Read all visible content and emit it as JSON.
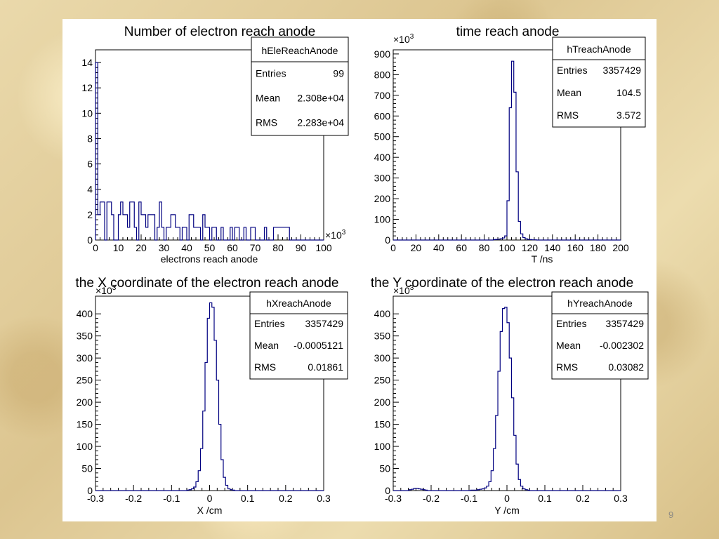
{
  "slide": {
    "page_number": "9"
  },
  "chart_data": [
    {
      "type": "histogram",
      "title": "Number of electron reach anode",
      "xlabel": "electrons reach anode",
      "ylabel": "",
      "xlim": [
        0,
        100
      ],
      "ylim": [
        0,
        15
      ],
      "x_multiplier": "×10³",
      "y_multiplier": "",
      "xticks": [
        0,
        10,
        20,
        30,
        40,
        50,
        60,
        70,
        80,
        90,
        100
      ],
      "xtick_labels": [
        "0",
        "10",
        "20",
        "30",
        "40",
        "50",
        "60",
        "70",
        "80",
        "90",
        "100"
      ],
      "yticks": [
        0,
        2,
        4,
        6,
        8,
        10,
        12,
        14
      ],
      "ytick_labels": [
        "0",
        "2",
        "4",
        "6",
        "8",
        "10",
        "12",
        "14"
      ],
      "bin_width": 1,
      "x": [
        0,
        1,
        2,
        3,
        4,
        5,
        6,
        7,
        8,
        9,
        10,
        11,
        12,
        13,
        14,
        15,
        16,
        17,
        18,
        19,
        20,
        21,
        22,
        23,
        24,
        25,
        26,
        27,
        28,
        29,
        30,
        31,
        32,
        33,
        34,
        35,
        36,
        37,
        38,
        39,
        40,
        41,
        42,
        43,
        44,
        45,
        46,
        47,
        48,
        49,
        50,
        51,
        52,
        53,
        54,
        55,
        56,
        57,
        58,
        59,
        60,
        61,
        62,
        63,
        64,
        65,
        66,
        67,
        68,
        69,
        70,
        71,
        72,
        73,
        74,
        75,
        76,
        77,
        78,
        79,
        80,
        81,
        82,
        83,
        84,
        85,
        86,
        87,
        88,
        89,
        90,
        91,
        92,
        93,
        94,
        95,
        96,
        97,
        98,
        99
      ],
      "values": [
        14,
        2,
        3,
        3,
        0,
        3,
        3,
        2,
        0,
        0,
        2,
        3,
        2,
        2,
        1,
        3,
        3,
        1,
        0,
        3,
        2,
        2,
        1,
        2,
        2,
        2,
        0,
        1,
        3,
        1,
        0,
        1,
        1,
        2,
        2,
        1,
        1,
        0,
        1,
        1,
        0,
        2,
        2,
        1,
        1,
        1,
        0,
        2,
        1,
        1,
        0,
        1,
        1,
        0,
        0,
        1,
        0,
        0,
        0,
        1,
        0,
        1,
        1,
        0,
        0,
        1,
        0,
        0,
        1,
        1,
        0,
        0,
        0,
        0,
        1,
        0,
        0,
        0,
        1,
        1,
        1,
        1,
        1,
        1,
        1,
        0,
        0,
        0,
        0,
        0,
        0,
        0,
        0,
        0,
        0,
        0,
        0,
        0,
        0,
        0
      ],
      "stats": {
        "name": "hEleReachAnode",
        "entries": "99",
        "mean": "2.308e+04",
        "rms": "2.283e+04"
      },
      "color": "#000080"
    },
    {
      "type": "histogram",
      "title": "time reach anode",
      "xlabel": "T /ns",
      "ylabel": "",
      "xlim": [
        0,
        200
      ],
      "ylim": [
        0,
        920
      ],
      "x_multiplier": "",
      "y_multiplier": "×10³",
      "xticks": [
        0,
        20,
        40,
        60,
        80,
        100,
        120,
        140,
        160,
        180,
        200
      ],
      "xtick_labels": [
        "0",
        "20",
        "40",
        "60",
        "80",
        "100",
        "120",
        "140",
        "160",
        "180",
        "200"
      ],
      "yticks": [
        0,
        100,
        200,
        300,
        400,
        500,
        600,
        700,
        800,
        900
      ],
      "ytick_labels": [
        "0",
        "100",
        "200",
        "300",
        "400",
        "500",
        "600",
        "700",
        "800",
        "900"
      ],
      "bin_width": 2,
      "x": [
        0,
        2,
        4,
        6,
        8,
        10,
        12,
        14,
        16,
        18,
        20,
        22,
        24,
        26,
        28,
        30,
        32,
        34,
        36,
        38,
        40,
        42,
        44,
        46,
        48,
        50,
        52,
        54,
        56,
        58,
        60,
        62,
        64,
        66,
        68,
        70,
        72,
        74,
        76,
        78,
        80,
        82,
        84,
        86,
        88,
        90,
        92,
        94,
        96,
        98,
        100,
        102,
        104,
        106,
        108,
        110,
        112,
        114,
        116,
        118,
        120,
        122,
        124,
        126,
        128,
        130,
        132,
        134,
        136,
        138,
        140,
        142,
        144,
        146,
        148,
        150,
        152,
        154,
        156,
        158,
        160,
        162,
        164,
        166,
        168,
        170,
        172,
        174,
        176,
        178,
        180,
        182,
        184,
        186,
        188,
        190,
        192,
        194,
        196,
        198
      ],
      "values": [
        0,
        0,
        0,
        0,
        0,
        0,
        0,
        0,
        0,
        0,
        0,
        0,
        0,
        0,
        0,
        0,
        0,
        0,
        0,
        0,
        0,
        0,
        0,
        0,
        0,
        0,
        0,
        0,
        0,
        0,
        0,
        0,
        0,
        0,
        0,
        0,
        0,
        0,
        0,
        0,
        0,
        0,
        0,
        0,
        2,
        3,
        4,
        6,
        10,
        20,
        190,
        640,
        865,
        715,
        330,
        90,
        30,
        12,
        6,
        3,
        2,
        1,
        1,
        0,
        0,
        0,
        0,
        0,
        0,
        0,
        0,
        0,
        0,
        0,
        0,
        0,
        0,
        0,
        0,
        0,
        0,
        0,
        0,
        0,
        0,
        0,
        0,
        0,
        0,
        0,
        0,
        0,
        0,
        0,
        0,
        0,
        0,
        0,
        0,
        0
      ],
      "stats": {
        "name": "hTreachAnode",
        "entries": "3357429",
        "mean": "104.5",
        "rms": "3.572"
      },
      "color": "#000080"
    },
    {
      "type": "histogram",
      "title": "the X coordinate of the electron reach anode",
      "xlabel": "X /cm",
      "ylabel": "",
      "xlim": [
        -0.3,
        0.3
      ],
      "ylim": [
        0,
        440
      ],
      "x_multiplier": "",
      "y_multiplier": "×10³",
      "xticks": [
        -0.3,
        -0.2,
        -0.1,
        0,
        0.1,
        0.2,
        0.3
      ],
      "xtick_labels": [
        "-0.3",
        "-0.2",
        "-0.1",
        "0",
        "0.1",
        "0.2",
        "0.3"
      ],
      "yticks": [
        0,
        50,
        100,
        150,
        200,
        250,
        300,
        350,
        400
      ],
      "ytick_labels": [
        "0",
        "50",
        "100",
        "150",
        "200",
        "250",
        "300",
        "350",
        "400"
      ],
      "bin_width": 0.006,
      "x": [
        -0.3,
        -0.294,
        -0.288,
        -0.282,
        -0.276,
        -0.27,
        -0.264,
        -0.258,
        -0.252,
        -0.246,
        -0.24,
        -0.234,
        -0.228,
        -0.222,
        -0.216,
        -0.21,
        -0.204,
        -0.198,
        -0.192,
        -0.186,
        -0.18,
        -0.174,
        -0.168,
        -0.162,
        -0.156,
        -0.15,
        -0.144,
        -0.138,
        -0.132,
        -0.126,
        -0.12,
        -0.114,
        -0.108,
        -0.102,
        -0.096,
        -0.09,
        -0.084,
        -0.078,
        -0.072,
        -0.066,
        -0.06,
        -0.054,
        -0.048,
        -0.042,
        -0.036,
        -0.03,
        -0.024,
        -0.018,
        -0.012,
        -0.006,
        0,
        0.006,
        0.012,
        0.018,
        0.024,
        0.03,
        0.036,
        0.042,
        0.048,
        0.054,
        0.06,
        0.066,
        0.072,
        0.078,
        0.084,
        0.09,
        0.096,
        0.102,
        0.108,
        0.114,
        0.12,
        0.126,
        0.132,
        0.138,
        0.144,
        0.15,
        0.156,
        0.162,
        0.168,
        0.174,
        0.18,
        0.186,
        0.192,
        0.198,
        0.204,
        0.21,
        0.216,
        0.222,
        0.228,
        0.234,
        0.24,
        0.246,
        0.252,
        0.258,
        0.264,
        0.27,
        0.276,
        0.282,
        0.288,
        0.294
      ],
      "values": [
        0,
        0,
        0,
        0,
        0,
        0,
        0,
        0,
        0,
        0,
        0,
        0,
        0,
        0,
        0,
        0,
        0,
        0,
        0,
        0,
        0,
        0,
        0,
        0,
        0,
        0,
        0,
        0,
        0,
        0,
        0,
        0,
        0,
        0,
        0,
        0,
        0,
        0,
        0,
        0,
        1,
        2,
        4,
        8,
        20,
        45,
        95,
        180,
        290,
        390,
        425,
        415,
        340,
        250,
        150,
        70,
        30,
        12,
        4,
        2,
        1,
        0,
        0,
        0,
        0,
        0,
        0,
        0,
        0,
        0,
        0,
        0,
        0,
        0,
        0,
        0,
        0,
        0,
        0,
        0,
        0,
        0,
        0,
        0,
        0,
        0,
        0,
        0,
        0,
        0,
        0,
        0,
        0,
        0,
        0,
        0,
        0,
        0,
        0,
        0
      ],
      "stats": {
        "name": "hXreachAnode",
        "entries": "3357429",
        "mean": "-0.0005121",
        "rms": "0.01861"
      },
      "color": "#000080"
    },
    {
      "type": "histogram",
      "title": "the Y coordinate of the electron reach anode",
      "xlabel": "Y /cm",
      "ylabel": "",
      "xlim": [
        -0.3,
        0.3
      ],
      "ylim": [
        0,
        440
      ],
      "x_multiplier": "",
      "y_multiplier": "×10³",
      "xticks": [
        -0.3,
        -0.2,
        -0.1,
        0,
        0.1,
        0.2,
        0.3
      ],
      "xtick_labels": [
        "-0.3",
        "-0.2",
        "-0.1",
        "0",
        "0.1",
        "0.2",
        "0.3"
      ],
      "yticks": [
        0,
        50,
        100,
        150,
        200,
        250,
        300,
        350,
        400
      ],
      "ytick_labels": [
        "0",
        "50",
        "100",
        "150",
        "200",
        "250",
        "300",
        "350",
        "400"
      ],
      "bin_width": 0.006,
      "x": [
        -0.3,
        -0.294,
        -0.288,
        -0.282,
        -0.276,
        -0.27,
        -0.264,
        -0.258,
        -0.252,
        -0.246,
        -0.24,
        -0.234,
        -0.228,
        -0.222,
        -0.216,
        -0.21,
        -0.204,
        -0.198,
        -0.192,
        -0.186,
        -0.18,
        -0.174,
        -0.168,
        -0.162,
        -0.156,
        -0.15,
        -0.144,
        -0.138,
        -0.132,
        -0.126,
        -0.12,
        -0.114,
        -0.108,
        -0.102,
        -0.096,
        -0.09,
        -0.084,
        -0.078,
        -0.072,
        -0.066,
        -0.06,
        -0.054,
        -0.048,
        -0.042,
        -0.036,
        -0.03,
        -0.024,
        -0.018,
        -0.012,
        -0.006,
        0,
        0.006,
        0.012,
        0.018,
        0.024,
        0.03,
        0.036,
        0.042,
        0.048,
        0.054,
        0.06,
        0.066,
        0.072,
        0.078,
        0.084,
        0.09,
        0.096,
        0.102,
        0.108,
        0.114,
        0.12,
        0.126,
        0.132,
        0.138,
        0.144,
        0.15,
        0.156,
        0.162,
        0.168,
        0.174,
        0.18,
        0.186,
        0.192,
        0.198,
        0.204,
        0.21,
        0.216,
        0.222,
        0.228,
        0.234,
        0.24,
        0.246,
        0.252,
        0.258,
        0.264,
        0.27,
        0.276,
        0.282,
        0.288,
        0.294
      ],
      "values": [
        0,
        0,
        0,
        0,
        0,
        0,
        0,
        2,
        3,
        5,
        5,
        4,
        3,
        2,
        1,
        0,
        0,
        0,
        0,
        0,
        0,
        0,
        0,
        0,
        0,
        0,
        0,
        0,
        0,
        0,
        0,
        0,
        0,
        0,
        1,
        1,
        1,
        2,
        3,
        4,
        6,
        10,
        20,
        45,
        95,
        170,
        270,
        360,
        412,
        415,
        380,
        300,
        210,
        125,
        60,
        25,
        10,
        4,
        2,
        1,
        0,
        0,
        0,
        0,
        0,
        0,
        0,
        0,
        0,
        0,
        0,
        0,
        0,
        0,
        0,
        0,
        0,
        0,
        0,
        0,
        0,
        0,
        0,
        0,
        0,
        0,
        0,
        0,
        0,
        0,
        0,
        0,
        0,
        0,
        0,
        0,
        0,
        0,
        0,
        0
      ],
      "stats": {
        "name": "hYreachAnode",
        "entries": "3357429",
        "mean": "-0.002302",
        "rms": "0.03082"
      },
      "color": "#000080"
    }
  ],
  "stat_labels": {
    "entries": "Entries",
    "mean": "Mean",
    "rms": "RMS"
  }
}
